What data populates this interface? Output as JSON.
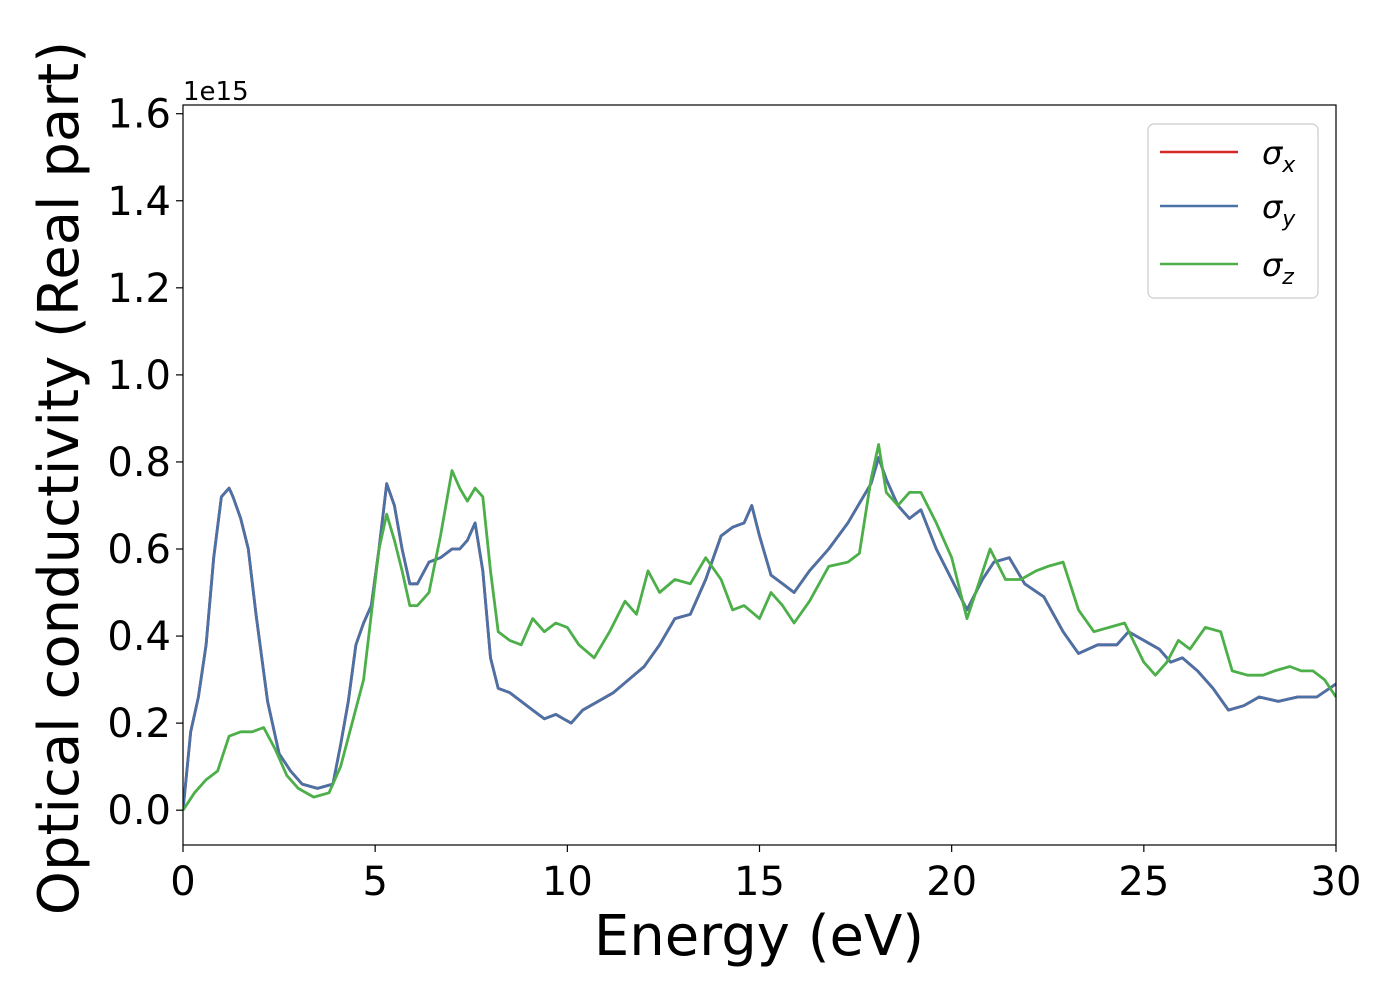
{
  "chart_data": {
    "type": "line",
    "xlabel": "Energy (eV)",
    "ylabel": "Optical conductivity (Real part)",
    "y_offset_label": "1e15",
    "xlim": [
      0,
      30
    ],
    "ylim": [
      -0.08,
      1.62
    ],
    "x_ticks": [
      0,
      5,
      10,
      15,
      20,
      25,
      30
    ],
    "x_tick_labels": [
      "0",
      "5",
      "10",
      "15",
      "20",
      "25",
      "30"
    ],
    "y_ticks": [
      0.0,
      0.2,
      0.4,
      0.6,
      0.8,
      1.0,
      1.2,
      1.4,
      1.6
    ],
    "y_tick_labels": [
      "0.0",
      "0.2",
      "0.4",
      "0.6",
      "0.8",
      "1.0",
      "1.2",
      "1.4",
      "1.6"
    ],
    "grid": false,
    "legend_position": "top-right",
    "series": [
      {
        "name": "σx",
        "legend_base": "σ",
        "legend_sub": "x",
        "color": "#d62728",
        "x": [
          0,
          0.2,
          0.4,
          0.6,
          0.8,
          1.0,
          1.2,
          1.3,
          1.5,
          1.7,
          1.9,
          2.2,
          2.5,
          2.8,
          3.1,
          3.5,
          3.9,
          4.1,
          4.3,
          4.5,
          4.7,
          4.9,
          5.1,
          5.3,
          5.5,
          5.7,
          5.9,
          6.1,
          6.4,
          6.7,
          7.0,
          7.2,
          7.4,
          7.6,
          7.8,
          8.0,
          8.2,
          8.5,
          8.8,
          9.1,
          9.4,
          9.7,
          9.9,
          10.1,
          10.4,
          10.8,
          11.2,
          11.6,
          12.0,
          12.4,
          12.8,
          13.2,
          13.6,
          14.0,
          14.3,
          14.6,
          14.8,
          15.0,
          15.3,
          15.6,
          15.9,
          16.3,
          16.8,
          17.3,
          17.9,
          18.1,
          18.3,
          18.6,
          18.9,
          19.2,
          19.6,
          20.0,
          20.4,
          20.8,
          21.1,
          21.5,
          21.9,
          22.4,
          22.9,
          23.3,
          23.8,
          24.3,
          24.6,
          25.0,
          25.4,
          25.7,
          26.0,
          26.4,
          26.8,
          27.2,
          27.6,
          28.0,
          28.5,
          29.0,
          29.5,
          30.0
        ],
        "y": [
          0.0,
          0.18,
          0.26,
          0.38,
          0.58,
          0.72,
          0.74,
          0.72,
          0.67,
          0.6,
          0.45,
          0.25,
          0.13,
          0.09,
          0.06,
          0.05,
          0.06,
          0.15,
          0.25,
          0.38,
          0.43,
          0.47,
          0.6,
          0.75,
          0.7,
          0.6,
          0.52,
          0.52,
          0.57,
          0.58,
          0.6,
          0.6,
          0.62,
          0.66,
          0.55,
          0.35,
          0.28,
          0.27,
          0.25,
          0.23,
          0.21,
          0.22,
          0.21,
          0.2,
          0.23,
          0.25,
          0.27,
          0.3,
          0.33,
          0.38,
          0.44,
          0.45,
          0.53,
          0.63,
          0.65,
          0.66,
          0.7,
          0.63,
          0.54,
          0.52,
          0.5,
          0.55,
          0.6,
          0.66,
          0.75,
          0.81,
          0.76,
          0.7,
          0.67,
          0.69,
          0.6,
          0.53,
          0.46,
          0.53,
          0.57,
          0.58,
          0.52,
          0.49,
          0.41,
          0.36,
          0.38,
          0.38,
          0.41,
          0.39,
          0.37,
          0.34,
          0.35,
          0.32,
          0.28,
          0.23,
          0.24,
          0.26,
          0.25,
          0.26,
          0.26,
          0.29
        ]
      },
      {
        "name": "σy",
        "legend_base": "σ",
        "legend_sub": "y",
        "color": "#4a72a6",
        "x": [
          0,
          0.2,
          0.4,
          0.6,
          0.8,
          1.0,
          1.2,
          1.3,
          1.5,
          1.7,
          1.9,
          2.2,
          2.5,
          2.8,
          3.1,
          3.5,
          3.9,
          4.1,
          4.3,
          4.5,
          4.7,
          4.9,
          5.1,
          5.3,
          5.5,
          5.7,
          5.9,
          6.1,
          6.4,
          6.7,
          7.0,
          7.2,
          7.4,
          7.6,
          7.8,
          8.0,
          8.2,
          8.5,
          8.8,
          9.1,
          9.4,
          9.7,
          9.9,
          10.1,
          10.4,
          10.8,
          11.2,
          11.6,
          12.0,
          12.4,
          12.8,
          13.2,
          13.6,
          14.0,
          14.3,
          14.6,
          14.8,
          15.0,
          15.3,
          15.6,
          15.9,
          16.3,
          16.8,
          17.3,
          17.9,
          18.1,
          18.3,
          18.6,
          18.9,
          19.2,
          19.6,
          20.0,
          20.4,
          20.8,
          21.1,
          21.5,
          21.9,
          22.4,
          22.9,
          23.3,
          23.8,
          24.3,
          24.6,
          25.0,
          25.4,
          25.7,
          26.0,
          26.4,
          26.8,
          27.2,
          27.6,
          28.0,
          28.5,
          29.0,
          29.5,
          30.0
        ],
        "y": [
          0.0,
          0.18,
          0.26,
          0.38,
          0.58,
          0.72,
          0.74,
          0.72,
          0.67,
          0.6,
          0.45,
          0.25,
          0.13,
          0.09,
          0.06,
          0.05,
          0.06,
          0.15,
          0.25,
          0.38,
          0.43,
          0.47,
          0.6,
          0.75,
          0.7,
          0.6,
          0.52,
          0.52,
          0.57,
          0.58,
          0.6,
          0.6,
          0.62,
          0.66,
          0.55,
          0.35,
          0.28,
          0.27,
          0.25,
          0.23,
          0.21,
          0.22,
          0.21,
          0.2,
          0.23,
          0.25,
          0.27,
          0.3,
          0.33,
          0.38,
          0.44,
          0.45,
          0.53,
          0.63,
          0.65,
          0.66,
          0.7,
          0.63,
          0.54,
          0.52,
          0.5,
          0.55,
          0.6,
          0.66,
          0.75,
          0.81,
          0.76,
          0.7,
          0.67,
          0.69,
          0.6,
          0.53,
          0.46,
          0.53,
          0.57,
          0.58,
          0.52,
          0.49,
          0.41,
          0.36,
          0.38,
          0.38,
          0.41,
          0.39,
          0.37,
          0.34,
          0.35,
          0.32,
          0.28,
          0.23,
          0.24,
          0.26,
          0.25,
          0.26,
          0.26,
          0.29
        ]
      },
      {
        "name": "σz",
        "legend_base": "σ",
        "legend_sub": "z",
        "color": "#4daf4a",
        "x": [
          0,
          0.3,
          0.6,
          0.9,
          1.2,
          1.5,
          1.8,
          2.1,
          2.4,
          2.7,
          3.0,
          3.4,
          3.8,
          4.1,
          4.4,
          4.7,
          4.9,
          5.1,
          5.3,
          5.5,
          5.7,
          5.9,
          6.1,
          6.4,
          6.7,
          7.0,
          7.2,
          7.4,
          7.6,
          7.8,
          8.0,
          8.2,
          8.5,
          8.8,
          9.1,
          9.4,
          9.7,
          10.0,
          10.3,
          10.7,
          11.1,
          11.5,
          11.8,
          12.1,
          12.4,
          12.8,
          13.2,
          13.6,
          14.0,
          14.3,
          14.6,
          15.0,
          15.3,
          15.6,
          15.9,
          16.3,
          16.8,
          17.3,
          17.6,
          17.9,
          18.1,
          18.3,
          18.6,
          18.9,
          19.2,
          19.6,
          20.0,
          20.4,
          20.7,
          21.0,
          21.4,
          21.8,
          22.2,
          22.5,
          22.9,
          23.3,
          23.7,
          24.1,
          24.5,
          25.0,
          25.3,
          25.6,
          25.9,
          26.2,
          26.6,
          27.0,
          27.3,
          27.7,
          28.1,
          28.4,
          28.8,
          29.1,
          29.4,
          29.7,
          30.0
        ],
        "y": [
          0.0,
          0.04,
          0.07,
          0.09,
          0.17,
          0.18,
          0.18,
          0.19,
          0.14,
          0.08,
          0.05,
          0.03,
          0.04,
          0.1,
          0.2,
          0.3,
          0.45,
          0.6,
          0.68,
          0.62,
          0.55,
          0.47,
          0.47,
          0.5,
          0.63,
          0.78,
          0.74,
          0.71,
          0.74,
          0.72,
          0.55,
          0.41,
          0.39,
          0.38,
          0.44,
          0.41,
          0.43,
          0.42,
          0.38,
          0.35,
          0.41,
          0.48,
          0.45,
          0.55,
          0.5,
          0.53,
          0.52,
          0.58,
          0.53,
          0.46,
          0.47,
          0.44,
          0.5,
          0.47,
          0.43,
          0.48,
          0.56,
          0.57,
          0.59,
          0.76,
          0.84,
          0.73,
          0.7,
          0.73,
          0.73,
          0.66,
          0.58,
          0.44,
          0.52,
          0.6,
          0.53,
          0.53,
          0.55,
          0.56,
          0.57,
          0.46,
          0.41,
          0.42,
          0.43,
          0.34,
          0.31,
          0.34,
          0.39,
          0.37,
          0.42,
          0.41,
          0.32,
          0.31,
          0.31,
          0.32,
          0.33,
          0.32,
          0.32,
          0.3,
          0.26
        ]
      }
    ]
  }
}
